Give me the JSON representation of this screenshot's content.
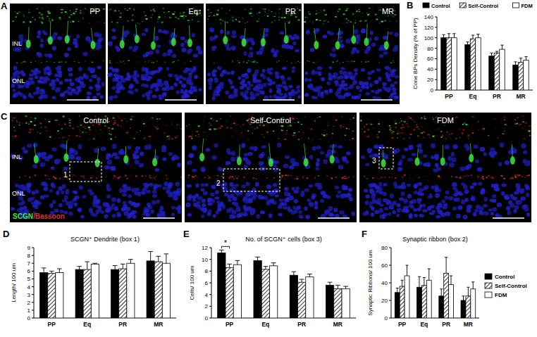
{
  "figure": {
    "panel_labels": [
      "A",
      "B",
      "C",
      "D",
      "E",
      "F"
    ],
    "panel_a": {
      "images": [
        "PP",
        "Eq",
        "PR",
        "MR"
      ],
      "layers": [
        "INL",
        "ONL"
      ]
    },
    "panel_c": {
      "images": [
        "Control",
        "Self-Control",
        "FDM"
      ],
      "layers": [
        "INL",
        "ONL"
      ],
      "boxes": [
        "1",
        "2",
        "3"
      ],
      "stain": [
        {
          "text": "SCGN",
          "color": "#3ce83c"
        },
        {
          "text": "/Bassoon",
          "color": "#e03030"
        }
      ]
    }
  },
  "chart_data": [
    {
      "type": "bar",
      "ylabel": "Cone BPs Density (% of PP)",
      "categories": [
        "PP",
        "Eq",
        "PR",
        "MR"
      ],
      "series": [
        {
          "name": "Control",
          "color": "#000000",
          "values": [
            100,
            87,
            65,
            48
          ],
          "errors": [
            6,
            5,
            6,
            6
          ]
        },
        {
          "name": "Self-Control",
          "color": "#000000",
          "line_style": "hatched",
          "values": [
            100,
            98,
            71,
            53
          ],
          "errors": [
            8,
            7,
            3,
            8
          ]
        },
        {
          "name": "FDM",
          "color": "#ffffff",
          "values": [
            100,
            100,
            78,
            57
          ],
          "errors": [
            8,
            7,
            8,
            7
          ]
        }
      ],
      "ylim": [
        0,
        140
      ],
      "yticks": [
        0,
        20,
        40,
        60,
        80,
        100,
        120,
        140
      ],
      "legend": "top"
    },
    {
      "type": "bar",
      "title": "SCGN⁺ Dendrite (box 1)",
      "ylabel": "Length/ 100 um",
      "categories": [
        "PP",
        "Eq",
        "PR",
        "MR"
      ],
      "series": [
        {
          "name": "Control",
          "color": "#000000",
          "values": [
            5.8,
            6.2,
            6.2,
            7.3
          ],
          "errors": [
            0.6,
            0.4,
            0.5,
            1.2
          ]
        },
        {
          "name": "Self-Control",
          "color": "#000000",
          "line_style": "hatched",
          "values": [
            5.7,
            6.2,
            6.3,
            7.2
          ],
          "errors": [
            0.3,
            1.0,
            0.6,
            0.7
          ]
        },
        {
          "name": "FDM",
          "color": "#ffffff",
          "values": [
            5.8,
            6.9,
            7.0,
            7.0
          ],
          "errors": [
            0.5,
            0.1,
            0.5,
            1.2
          ]
        }
      ],
      "ylim": [
        0,
        9
      ],
      "yticks": [
        0,
        1,
        2,
        3,
        4,
        5,
        6,
        7,
        8,
        9
      ]
    },
    {
      "type": "bar",
      "title": "No. of SCGN⁺ cells (box 3)",
      "ylabel": "Cells/ 100 um",
      "categories": [
        "PP",
        "Eq",
        "PR",
        "MR"
      ],
      "series": [
        {
          "name": "Control",
          "color": "#000000",
          "values": [
            11.1,
            9.8,
            7.3,
            5.6
          ],
          "errors": [
            0.5,
            0.6,
            0.6,
            0.5
          ]
        },
        {
          "name": "Self-Control",
          "color": "#000000",
          "line_style": "hatched",
          "values": [
            8.6,
            8.3,
            6.1,
            5.0
          ],
          "errors": [
            0.6,
            0.5,
            0.5,
            0.6
          ]
        },
        {
          "name": "FDM",
          "color": "#ffffff",
          "values": [
            9.1,
            8.9,
            7.0,
            5.0
          ],
          "errors": [
            0.7,
            0.5,
            0.5,
            0.4
          ]
        }
      ],
      "ylim": [
        0,
        12
      ],
      "yticks": [
        0,
        2,
        4,
        6,
        8,
        10,
        12
      ],
      "annotations": [
        {
          "text": "*",
          "category": "PP",
          "between": [
            "Control",
            "Self-Control"
          ]
        }
      ]
    },
    {
      "type": "bar",
      "title": "Synaptic ribbon (box 2)",
      "ylabel": "Synaptic Ribbons/ 100 um",
      "categories": [
        "PP",
        "Eq",
        "PR",
        "MR"
      ],
      "series": [
        {
          "name": "Control",
          "color": "#000000",
          "values": [
            29,
            35,
            25,
            20
          ],
          "errors": [
            5,
            12,
            8,
            5
          ]
        },
        {
          "name": "Self-Control",
          "color": "#000000",
          "line_style": "hatched",
          "values": [
            36,
            37,
            51,
            25
          ],
          "errors": [
            7,
            9,
            18,
            10
          ]
        },
        {
          "name": "FDM",
          "color": "#ffffff",
          "values": [
            48,
            43,
            38,
            33
          ],
          "errors": [
            12,
            13,
            10,
            8
          ]
        }
      ],
      "ylim": [
        0,
        80
      ],
      "yticks": [
        0,
        20,
        40,
        60,
        80
      ],
      "legend": "right"
    }
  ]
}
